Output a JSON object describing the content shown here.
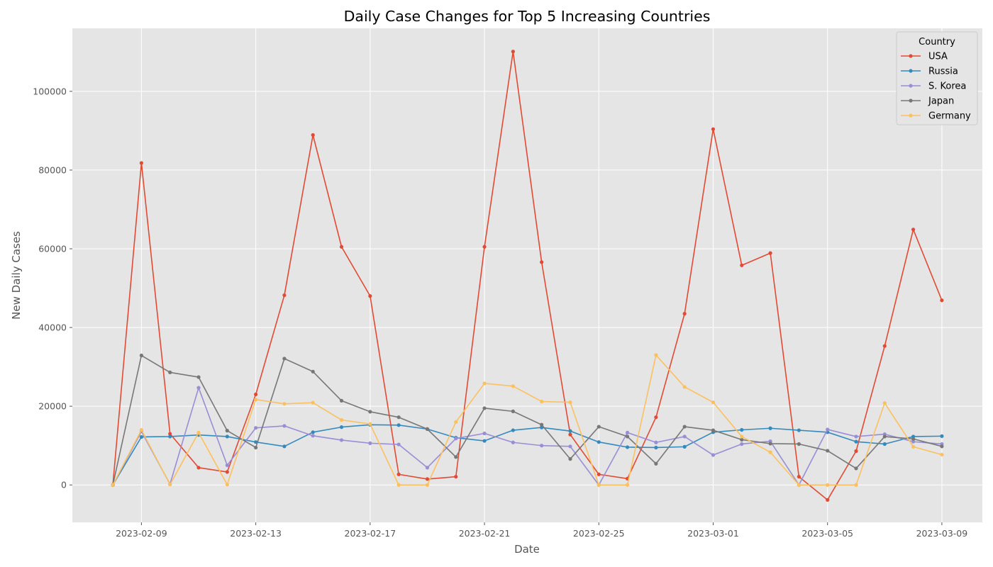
{
  "chart_data": {
    "type": "line",
    "title": "Daily Case Changes for Top 5 Increasing Countries",
    "xlabel": "Date",
    "ylabel": "New Daily Cases",
    "ylim": [
      -9500,
      116000
    ],
    "yticks": [
      0,
      20000,
      40000,
      60000,
      80000,
      100000
    ],
    "xlim": [
      "2023-02-06T14:00:00",
      "2023-03-10T10:00:00"
    ],
    "xticks": [
      "2023-02-09",
      "2023-02-13",
      "2023-02-17",
      "2023-02-21",
      "2023-02-25",
      "2023-03-01",
      "2023-03-05",
      "2023-03-09"
    ],
    "grid": true,
    "legend": {
      "title": "Country",
      "position": "top-right"
    },
    "x": [
      "2023-02-08",
      "2023-02-09",
      "2023-02-10",
      "2023-02-11",
      "2023-02-12",
      "2023-02-13",
      "2023-02-14",
      "2023-02-15",
      "2023-02-16",
      "2023-02-17",
      "2023-02-18",
      "2023-02-19",
      "2023-02-20",
      "2023-02-21",
      "2023-02-22",
      "2023-02-23",
      "2023-02-24",
      "2023-02-25",
      "2023-02-26",
      "2023-02-27",
      "2023-02-28",
      "2023-03-01",
      "2023-03-02",
      "2023-03-03",
      "2023-03-04",
      "2023-03-05",
      "2023-03-06",
      "2023-03-07",
      "2023-03-08",
      "2023-03-09"
    ],
    "series": [
      {
        "name": "USA",
        "color": "#e24a33",
        "values": [
          0,
          81800,
          13000,
          4400,
          3300,
          23000,
          48200,
          88900,
          60500,
          48000,
          2700,
          1500,
          2100,
          60500,
          110100,
          56600,
          12800,
          2700,
          1600,
          17200,
          43500,
          90400,
          55800,
          58900,
          2100,
          -3800,
          8600,
          35300,
          64900,
          46900
        ]
      },
      {
        "name": "Russia",
        "color": "#348abd",
        "values": [
          0,
          12200,
          12300,
          12700,
          12300,
          10900,
          9800,
          13400,
          14700,
          15300,
          15200,
          14200,
          12000,
          11200,
          13900,
          14600,
          13700,
          10900,
          9600,
          9500,
          9700,
          13400,
          14000,
          14400,
          13900,
          13400,
          11000,
          10400,
          12300,
          12400
        ]
      },
      {
        "name": "S. Korea",
        "color": "#988ed5",
        "values": [
          0,
          13600,
          200,
          24700,
          5000,
          14500,
          15000,
          12500,
          11400,
          10600,
          10300,
          4400,
          11800,
          13100,
          10800,
          10000,
          9800,
          0,
          13300,
          10800,
          12300,
          7600,
          10400,
          11100,
          0,
          14100,
          12300,
          12900,
          11000,
          10400
        ]
      },
      {
        "name": "Japan",
        "color": "#777777",
        "values": [
          0,
          32900,
          28600,
          27400,
          13800,
          9500,
          32100,
          28800,
          21400,
          18600,
          17200,
          14200,
          7100,
          19500,
          18700,
          15300,
          6600,
          14800,
          12300,
          5400,
          14800,
          13900,
          11500,
          10500,
          10400,
          8700,
          4200,
          12300,
          11700,
          9800
        ]
      },
      {
        "name": "Germany",
        "color": "#fbc15e",
        "values": [
          0,
          14000,
          100,
          13300,
          100,
          21700,
          20600,
          20900,
          16500,
          15500,
          0,
          0,
          16000,
          25800,
          25100,
          21200,
          21000,
          0,
          0,
          33000,
          24900,
          21000,
          12300,
          8300,
          0,
          0,
          0,
          20800,
          9700,
          7700
        ]
      }
    ]
  }
}
